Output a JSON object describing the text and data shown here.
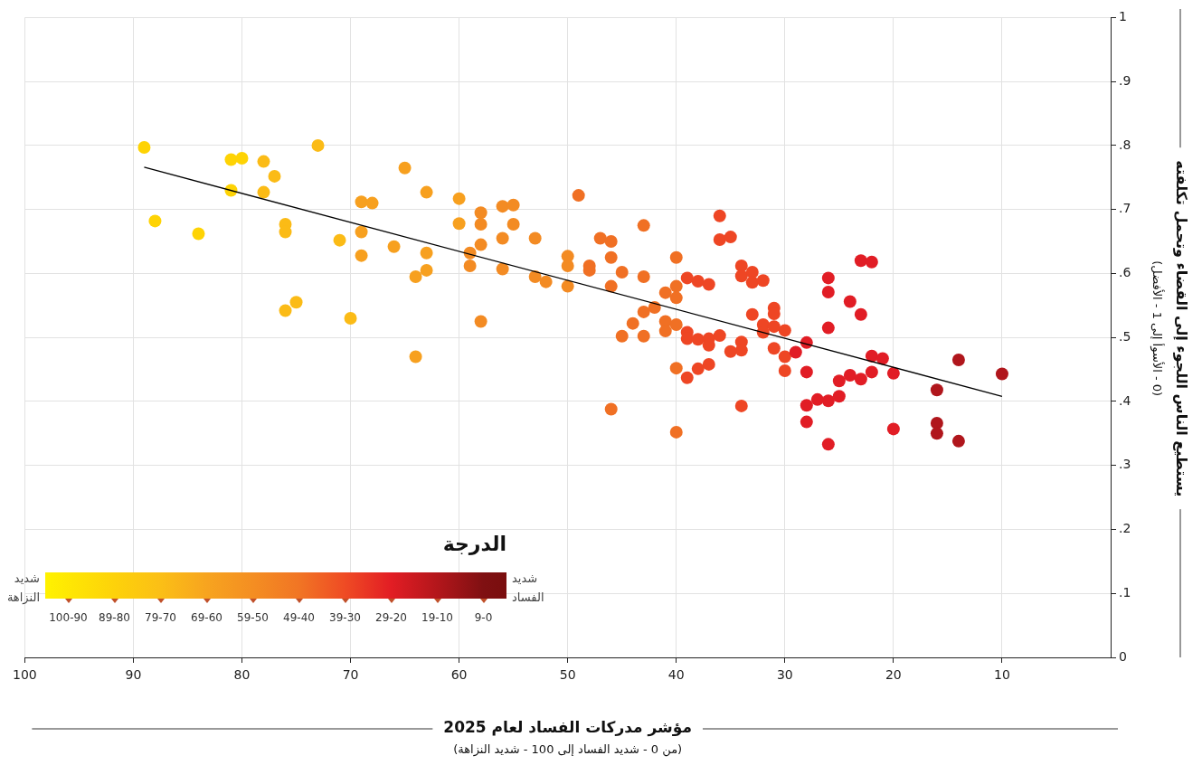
{
  "chart_data": {
    "type": "scatter",
    "xlabel": "مؤشر مدركات الفساد لعام 2025",
    "ylabel": "يستطيع الناس اللجوء إلى القضاء وتحمل تكلفته",
    "annotations": [
      "(من 0 - شديد الفساد إلى 100 - شديد النزاهة)",
      "(0 - الأسوأ إلى 1 - الأفضل)",
      "الدرجة",
      "شديد النزاهة",
      "شديد الفساد",
      "100-90",
      "89-80",
      "79-70",
      "69-60",
      "59-50",
      "49-40",
      "39-30",
      "29-20",
      "19-10",
      "9-0"
    ],
    "xlim": [
      100,
      0
    ],
    "xticks": [
      100,
      90,
      80,
      70,
      60,
      50,
      40,
      30,
      20,
      10
    ],
    "ylim": [
      0,
      1
    ],
    "yticks": [
      0,
      {
        "value": 0.1,
        "label": ".1"
      },
      {
        "value": 0.2,
        "label": ".2"
      },
      {
        "value": 0.3,
        "label": ".3"
      },
      {
        "value": 0.4,
        "label": ".4"
      },
      {
        "value": 0.5,
        "label": ".5"
      },
      {
        "value": 0.6,
        "label": ".6"
      },
      {
        "value": 0.7,
        "label": ".7"
      },
      {
        "value": 0.8,
        "label": ".8"
      },
      {
        "value": 0.9,
        "label": ".9"
      },
      1
    ],
    "grid": true,
    "legend": false,
    "marker": "circle",
    "series": [
      {
        "x": [
          89,
          88,
          84,
          81,
          81,
          80,
          78,
          77,
          78,
          76,
          76,
          73,
          76,
          75,
          71,
          70,
          69,
          68,
          69,
          69,
          66,
          65,
          64,
          64,
          63,
          63,
          63,
          60,
          60,
          59,
          59,
          58,
          58,
          58,
          58,
          56,
          55,
          55,
          56,
          56,
          53,
          53,
          52,
          50,
          50,
          50,
          48,
          48,
          49,
          47,
          46,
          46,
          46,
          46,
          45,
          45,
          44,
          43,
          43,
          43,
          43,
          42,
          41,
          41,
          41,
          40,
          40,
          40,
          40,
          40,
          40,
          36,
          36,
          35,
          34,
          34,
          33,
          33,
          32,
          39,
          38,
          37,
          33,
          31,
          31,
          32,
          31,
          32,
          30,
          39,
          39,
          38,
          37,
          37,
          36,
          34,
          34,
          35,
          31,
          30,
          29,
          28,
          30,
          38,
          37,
          39,
          34,
          28,
          26,
          26,
          23,
          22,
          24,
          23,
          26,
          22,
          21,
          20,
          25,
          24,
          23,
          22,
          25,
          26,
          27,
          28,
          28,
          26,
          20,
          14,
          10,
          16,
          16,
          16,
          14
        ],
        "values": [
          0.797,
          0.682,
          0.662,
          0.73,
          0.778,
          0.78,
          0.775,
          0.752,
          0.727,
          0.677,
          0.665,
          0.8,
          0.542,
          0.555,
          0.652,
          0.53,
          0.712,
          0.71,
          0.665,
          0.628,
          0.642,
          0.765,
          0.595,
          0.47,
          0.727,
          0.632,
          0.605,
          0.717,
          0.678,
          0.632,
          0.612,
          0.695,
          0.677,
          0.645,
          0.525,
          0.705,
          0.707,
          0.677,
          0.655,
          0.607,
          0.655,
          0.595,
          0.587,
          0.627,
          0.612,
          0.58,
          0.612,
          0.605,
          0.722,
          0.655,
          0.65,
          0.625,
          0.58,
          0.388,
          0.602,
          0.502,
          0.522,
          0.675,
          0.595,
          0.54,
          0.502,
          0.547,
          0.57,
          0.525,
          0.51,
          0.625,
          0.58,
          0.562,
          0.52,
          0.452,
          0.352,
          0.69,
          0.653,
          0.657,
          0.612,
          0.596,
          0.602,
          0.586,
          0.589,
          0.593,
          0.588,
          0.583,
          0.536,
          0.546,
          0.537,
          0.52,
          0.517,
          0.508,
          0.511,
          0.508,
          0.498,
          0.497,
          0.498,
          0.488,
          0.503,
          0.493,
          0.48,
          0.478,
          0.483,
          0.47,
          0.477,
          0.492,
          0.448,
          0.451,
          0.458,
          0.437,
          0.393,
          0.446,
          0.593,
          0.571,
          0.62,
          0.618,
          0.556,
          0.536,
          0.515,
          0.471,
          0.467,
          0.444,
          0.432,
          0.441,
          0.435,
          0.446,
          0.408,
          0.401,
          0.403,
          0.394,
          0.368,
          0.333,
          0.357,
          0.465,
          0.443,
          0.418,
          0.366,
          0.35,
          0.338
        ],
        "colors": [
          "#fed304",
          "#fed304",
          "#fed304",
          "#fed304",
          "#fed304",
          "#fed304",
          "#fbbb16",
          "#fbbb16",
          "#fbbb16",
          "#fbbb16",
          "#fbbb16",
          "#fbbb16",
          "#fbbb16",
          "#fbbb16",
          "#fbbb16",
          "#fbbb16",
          "#f7a01f",
          "#f7a01f",
          "#f7a01f",
          "#f7a01f",
          "#f7a01f",
          "#f7a01f",
          "#f7a01f",
          "#f7a01f",
          "#f7a01f",
          "#f7a01f",
          "#f7a01f",
          "#f7a01f",
          "#f7a01f",
          "#f38b23",
          "#f38b23",
          "#f38b23",
          "#f38b23",
          "#f38b23",
          "#f38b23",
          "#f38b23",
          "#f38b23",
          "#f38b23",
          "#f38b23",
          "#f38b23",
          "#f38b23",
          "#f38b23",
          "#f38b23",
          "#f38b23",
          "#f38b23",
          "#f38b23",
          "#f07024",
          "#f07024",
          "#f07024",
          "#f07024",
          "#f07024",
          "#f07024",
          "#f07024",
          "#f07024",
          "#f07024",
          "#f07024",
          "#f07024",
          "#f07024",
          "#f07024",
          "#f07024",
          "#f07024",
          "#f07024",
          "#f07024",
          "#f07024",
          "#f07024",
          "#f07024",
          "#f07024",
          "#f07024",
          "#f07024",
          "#f07024",
          "#f07024",
          "#ee4624",
          "#ee4624",
          "#ee4624",
          "#ee4624",
          "#ee4624",
          "#ee4624",
          "#ee4624",
          "#ee4624",
          "#ee4624",
          "#ee4624",
          "#ee4624",
          "#ee4624",
          "#ee4624",
          "#ee4624",
          "#ee4624",
          "#ee4624",
          "#ee4624",
          "#ee4624",
          "#ee4624",
          "#ee4624",
          "#ee4624",
          "#ee4624",
          "#ee4624",
          "#ee4624",
          "#ee4624",
          "#ee4624",
          "#ee4624",
          "#ee4624",
          "#ee4624",
          "#e11d25",
          "#e11d25",
          "#ee4624",
          "#ee4624",
          "#ee4624",
          "#ee4624",
          "#ee4624",
          "#e11d25",
          "#e11d25",
          "#e11d25",
          "#e11d25",
          "#e11d25",
          "#e11d25",
          "#e11d25",
          "#e11d25",
          "#e11d25",
          "#e11d25",
          "#e11d25",
          "#e11d25",
          "#e11d25",
          "#e11d25",
          "#e11d25",
          "#e11d25",
          "#e11d25",
          "#e11d25",
          "#e11d25",
          "#e11d25",
          "#e11d25",
          "#e11d25",
          "#b0161c",
          "#b0161c",
          "#b0161c",
          "#b0161c",
          "#b0161c",
          "#b0161c"
        ]
      },
      {
        "type": "line",
        "color": "#000000",
        "x": [
          89,
          10
        ],
        "values": [
          0.766,
          0.408
        ],
        "marker": "none",
        "line_style": "solid"
      }
    ]
  }
}
